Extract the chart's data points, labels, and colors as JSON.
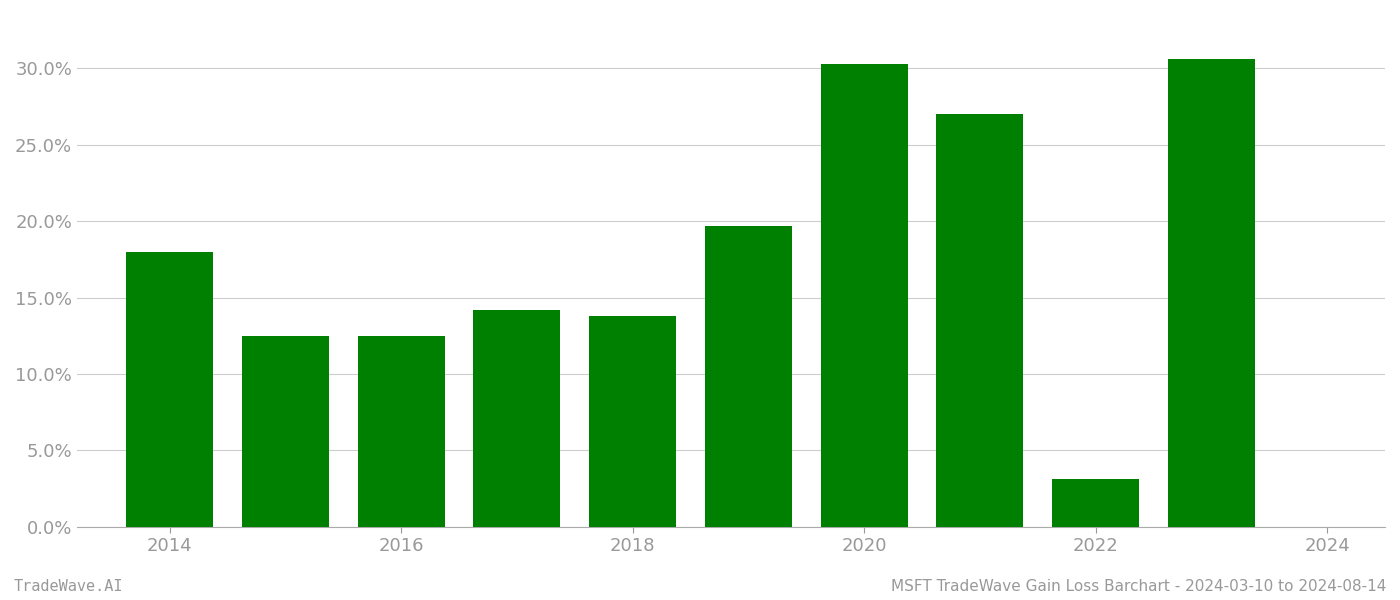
{
  "years": [
    2014,
    2015,
    2016,
    2017,
    2018,
    2019,
    2020,
    2021,
    2022,
    2023
  ],
  "values": [
    0.18,
    0.125,
    0.125,
    0.142,
    0.138,
    0.197,
    0.303,
    0.27,
    0.031,
    0.306
  ],
  "bar_color": "#008000",
  "background_color": "#ffffff",
  "ylim": [
    0,
    0.335
  ],
  "yticks": [
    0.0,
    0.05,
    0.1,
    0.15,
    0.2,
    0.25,
    0.3
  ],
  "xtick_labels": [
    "2014",
    "2016",
    "2018",
    "2020",
    "2022",
    "2024"
  ],
  "xtick_positions": [
    2014,
    2016,
    2018,
    2020,
    2022,
    2024
  ],
  "xlim": [
    2013.2,
    2024.5
  ],
  "footer_left": "TradeWave.AI",
  "footer_right": "MSFT TradeWave Gain Loss Barchart - 2024-03-10 to 2024-08-14",
  "grid_color": "#cccccc",
  "tick_label_color": "#999999",
  "bar_width": 0.75,
  "tick_fontsize": 13,
  "footer_fontsize": 11
}
